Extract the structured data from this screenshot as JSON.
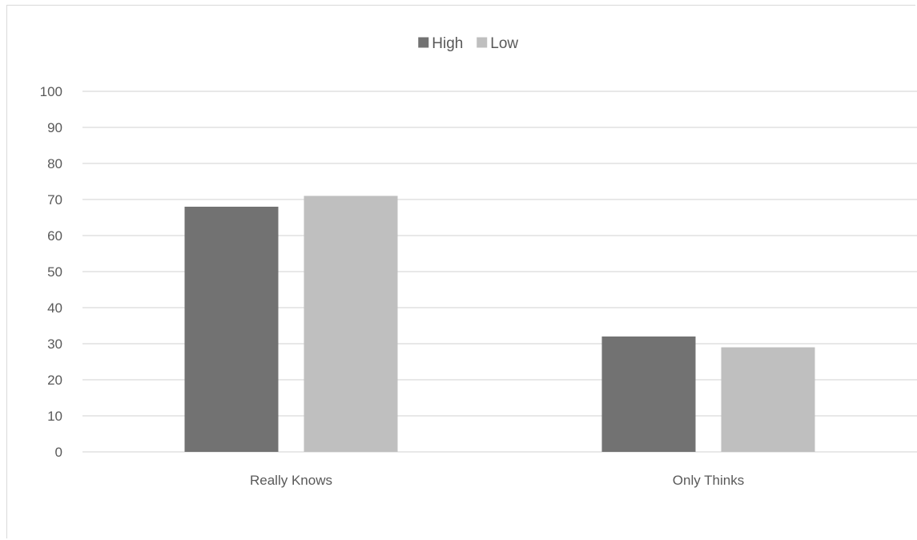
{
  "chart_data": {
    "type": "bar",
    "categories": [
      "Really Knows",
      "Only Thinks"
    ],
    "series": [
      {
        "name": "High",
        "values": [
          68,
          32
        ],
        "color": "#727272"
      },
      {
        "name": "Low",
        "values": [
          71,
          29
        ],
        "color": "#bfbfbf"
      }
    ],
    "ylim": [
      0,
      100
    ],
    "yticks": [
      0,
      10,
      20,
      30,
      40,
      50,
      60,
      70,
      80,
      90,
      100
    ],
    "grid": true,
    "legend": "top-center",
    "gridColor": "#d9d9d9"
  }
}
